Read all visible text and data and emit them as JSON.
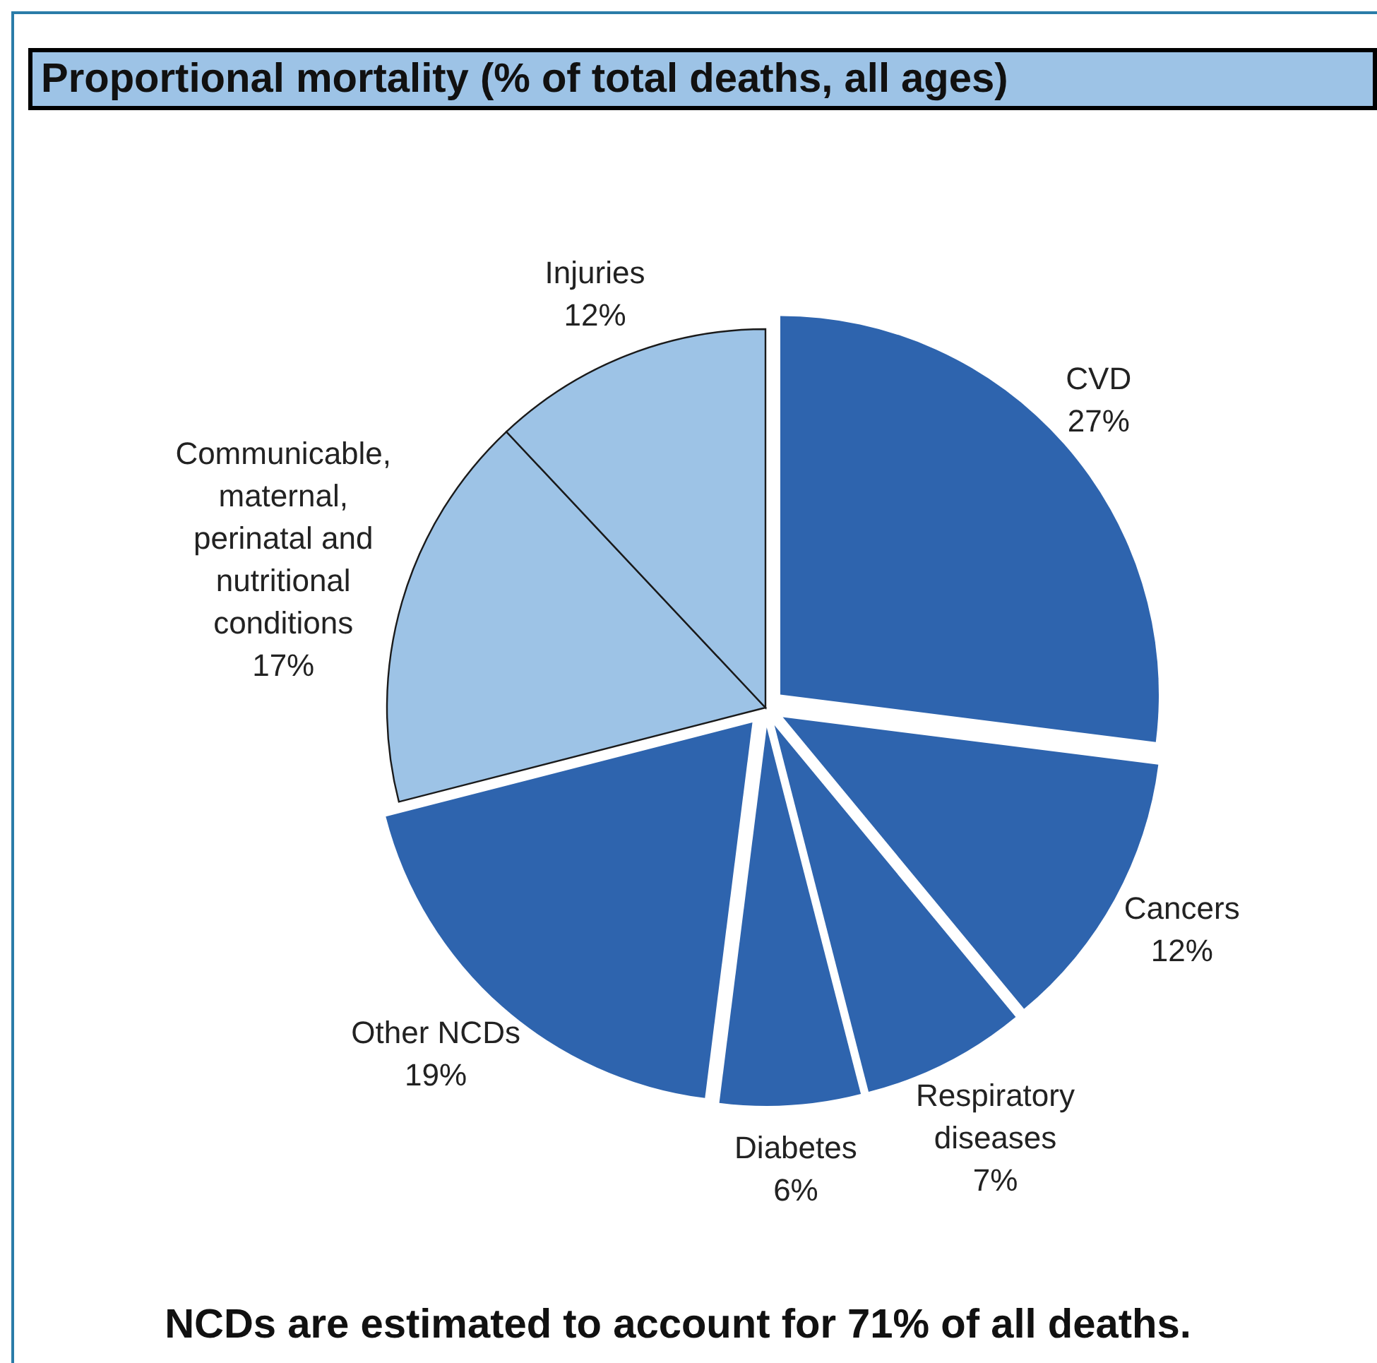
{
  "chart_data": {
    "type": "pie",
    "title": "Proportional mortality (% of total deaths, all ages)",
    "categories": [
      "CVD",
      "Cancers",
      "Respiratory diseases",
      "Diabetes",
      "Other NCDs",
      "Communicable, maternal, perinatal and nutritional conditions",
      "Injuries"
    ],
    "values": [
      27,
      12,
      7,
      6,
      19,
      17,
      12
    ],
    "colors": [
      "#2e64ae",
      "#2e64ae",
      "#2e64ae",
      "#2e64ae",
      "#2e64ae",
      "#9dc3e6",
      "#9dc3e6"
    ],
    "value_labels": [
      "27%",
      "12%",
      "7%",
      "6%",
      "19%",
      "17%",
      "12%"
    ],
    "annotations": [
      "NCDs are estimated to account for 71% of all deaths."
    ]
  }
}
